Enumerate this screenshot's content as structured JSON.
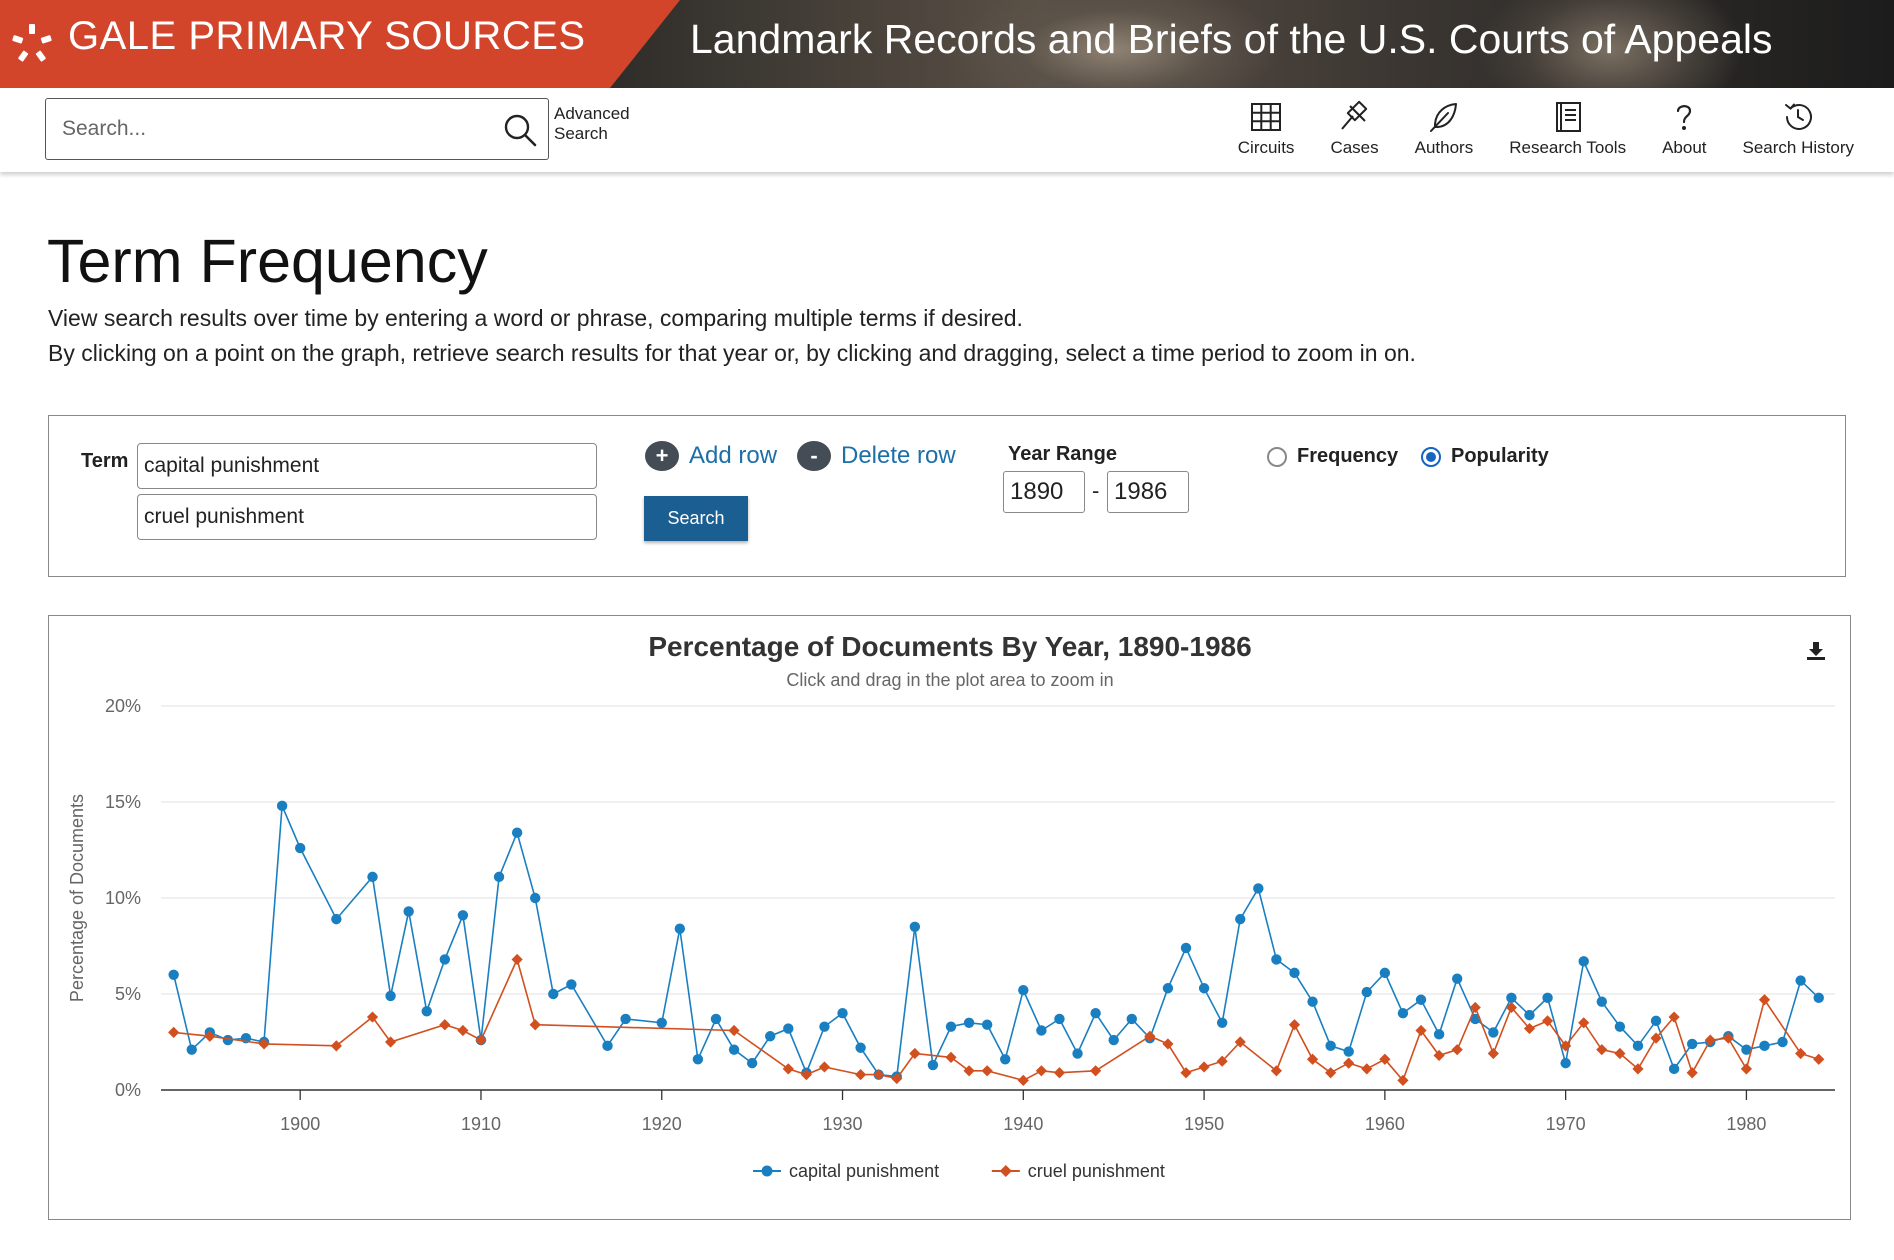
{
  "header": {
    "brand": "GALE PRIMARY SOURCES",
    "collection": "Landmark Records and Briefs of the U.S. Courts of Appeals"
  },
  "toolbar": {
    "search_placeholder": "Search...",
    "advanced_search": "Advanced Search",
    "nav": [
      {
        "label": "Circuits",
        "icon": "grid-icon"
      },
      {
        "label": "Cases",
        "icon": "gavel-icon"
      },
      {
        "label": "Authors",
        "icon": "feather-icon"
      },
      {
        "label": "Research Tools",
        "icon": "book-icon"
      },
      {
        "label": "About",
        "icon": "question-icon"
      },
      {
        "label": "Search History",
        "icon": "history-icon"
      }
    ]
  },
  "page": {
    "title": "Term Frequency",
    "desc1": "View search results over time by entering a word or phrase, comparing multiple terms if desired.",
    "desc2": "By clicking on a point on the graph, retrieve search results for that year or, by clicking and dragging, select a time period to zoom in on."
  },
  "form": {
    "term_label": "Term",
    "terms": [
      "capital punishment",
      "cruel punishment"
    ],
    "add_row": "Add row",
    "delete_row": "Delete row",
    "search_button": "Search",
    "year_range_label": "Year Range",
    "year_from": "1890",
    "year_to": "1986",
    "year_sep": "-",
    "mode_options": [
      "Frequency",
      "Popularity"
    ],
    "mode_selected": "Popularity"
  },
  "colors": {
    "brand": "#d2452b",
    "series1": "#1a7fc1",
    "series2": "#d2501f",
    "button": "#1b5e92",
    "link": "#1d6fa8"
  },
  "chart_data": {
    "type": "line",
    "title": "Percentage of Documents By Year, 1890-1986",
    "subtitle": "Click and drag in the plot area to zoom in",
    "ylabel": "Percentage of Documents",
    "xlabel": "",
    "ylim": [
      0,
      20
    ],
    "xlim": [
      1890,
      1986
    ],
    "yticks": [
      0,
      5,
      10,
      15,
      20
    ],
    "ytick_labels": [
      "0%",
      "5%",
      "10%",
      "15%",
      "20%"
    ],
    "xticks": [
      1900,
      1910,
      1920,
      1930,
      1940,
      1950,
      1960,
      1970,
      1980
    ],
    "grid": true,
    "legend": "bottom",
    "series": [
      {
        "name": "capital punishment",
        "color": "#1a7fc1",
        "marker": "circle",
        "points": [
          [
            1893,
            6.0
          ],
          [
            1894,
            2.1
          ],
          [
            1895,
            3.0
          ],
          [
            1896,
            2.6
          ],
          [
            1897,
            2.7
          ],
          [
            1898,
            2.5
          ],
          [
            1899,
            14.8
          ],
          [
            1900,
            12.6
          ],
          [
            1902,
            8.9
          ],
          [
            1904,
            11.1
          ],
          [
            1905,
            4.9
          ],
          [
            1906,
            9.3
          ],
          [
            1907,
            4.1
          ],
          [
            1908,
            6.8
          ],
          [
            1909,
            9.1
          ],
          [
            1910,
            2.6
          ],
          [
            1911,
            11.1
          ],
          [
            1912,
            13.4
          ],
          [
            1913,
            10.0
          ],
          [
            1914,
            5.0
          ],
          [
            1915,
            5.5
          ],
          [
            1917,
            2.3
          ],
          [
            1918,
            3.7
          ],
          [
            1920,
            3.5
          ],
          [
            1921,
            8.4
          ],
          [
            1922,
            1.6
          ],
          [
            1923,
            3.7
          ],
          [
            1924,
            2.1
          ],
          [
            1925,
            1.4
          ],
          [
            1926,
            2.8
          ],
          [
            1927,
            3.2
          ],
          [
            1928,
            0.9
          ],
          [
            1929,
            3.3
          ],
          [
            1930,
            4.0
          ],
          [
            1931,
            2.2
          ],
          [
            1932,
            0.8
          ],
          [
            1933,
            0.7
          ],
          [
            1934,
            8.5
          ],
          [
            1935,
            1.3
          ],
          [
            1936,
            3.3
          ],
          [
            1937,
            3.5
          ],
          [
            1938,
            3.4
          ],
          [
            1939,
            1.6
          ],
          [
            1940,
            5.2
          ],
          [
            1941,
            3.1
          ],
          [
            1942,
            3.7
          ],
          [
            1943,
            1.9
          ],
          [
            1944,
            4.0
          ],
          [
            1945,
            2.6
          ],
          [
            1946,
            3.7
          ],
          [
            1947,
            2.7
          ],
          [
            1948,
            5.3
          ],
          [
            1949,
            7.4
          ],
          [
            1950,
            5.3
          ],
          [
            1951,
            3.5
          ],
          [
            1952,
            8.9
          ],
          [
            1953,
            10.5
          ],
          [
            1954,
            6.8
          ],
          [
            1955,
            6.1
          ],
          [
            1956,
            4.6
          ],
          [
            1957,
            2.3
          ],
          [
            1958,
            2.0
          ],
          [
            1959,
            5.1
          ],
          [
            1960,
            6.1
          ],
          [
            1961,
            4.0
          ],
          [
            1962,
            4.7
          ],
          [
            1963,
            2.9
          ],
          [
            1964,
            5.8
          ],
          [
            1965,
            3.7
          ],
          [
            1966,
            3.0
          ],
          [
            1967,
            4.8
          ],
          [
            1968,
            3.9
          ],
          [
            1969,
            4.8
          ],
          [
            1970,
            1.4
          ],
          [
            1971,
            6.7
          ],
          [
            1972,
            4.6
          ],
          [
            1973,
            3.3
          ],
          [
            1974,
            2.3
          ],
          [
            1975,
            3.6
          ],
          [
            1976,
            1.1
          ],
          [
            1977,
            2.4
          ],
          [
            1978,
            2.5
          ],
          [
            1979,
            2.8
          ],
          [
            1980,
            2.1
          ],
          [
            1981,
            2.3
          ],
          [
            1982,
            2.5
          ],
          [
            1983,
            5.7
          ],
          [
            1984,
            4.8
          ]
        ]
      },
      {
        "name": "cruel punishment",
        "color": "#d2501f",
        "marker": "diamond",
        "points": [
          [
            1893,
            3.0
          ],
          [
            1895,
            2.8
          ],
          [
            1898,
            2.4
          ],
          [
            1902,
            2.3
          ],
          [
            1904,
            3.8
          ],
          [
            1905,
            2.5
          ],
          [
            1908,
            3.4
          ],
          [
            1909,
            3.1
          ],
          [
            1910,
            2.6
          ],
          [
            1912,
            6.8
          ],
          [
            1913,
            3.4
          ],
          [
            1924,
            3.1
          ],
          [
            1927,
            1.1
          ],
          [
            1928,
            0.8
          ],
          [
            1929,
            1.2
          ],
          [
            1931,
            0.8
          ],
          [
            1932,
            0.8
          ],
          [
            1933,
            0.6
          ],
          [
            1934,
            1.9
          ],
          [
            1936,
            1.7
          ],
          [
            1937,
            1.0
          ],
          [
            1938,
            1.0
          ],
          [
            1940,
            0.5
          ],
          [
            1941,
            1.0
          ],
          [
            1942,
            0.9
          ],
          [
            1944,
            1.0
          ],
          [
            1947,
            2.8
          ],
          [
            1948,
            2.4
          ],
          [
            1949,
            0.9
          ],
          [
            1950,
            1.2
          ],
          [
            1951,
            1.5
          ],
          [
            1952,
            2.5
          ],
          [
            1954,
            1.0
          ],
          [
            1955,
            3.4
          ],
          [
            1956,
            1.6
          ],
          [
            1957,
            0.9
          ],
          [
            1958,
            1.4
          ],
          [
            1959,
            1.1
          ],
          [
            1960,
            1.6
          ],
          [
            1961,
            0.5
          ],
          [
            1962,
            3.1
          ],
          [
            1963,
            1.8
          ],
          [
            1964,
            2.1
          ],
          [
            1965,
            4.3
          ],
          [
            1966,
            1.9
          ],
          [
            1967,
            4.3
          ],
          [
            1968,
            3.2
          ],
          [
            1969,
            3.6
          ],
          [
            1970,
            2.3
          ],
          [
            1971,
            3.5
          ],
          [
            1972,
            2.1
          ],
          [
            1973,
            1.9
          ],
          [
            1974,
            1.1
          ],
          [
            1975,
            2.7
          ],
          [
            1976,
            3.8
          ],
          [
            1977,
            0.9
          ],
          [
            1978,
            2.6
          ],
          [
            1979,
            2.7
          ],
          [
            1980,
            1.1
          ],
          [
            1981,
            4.7
          ],
          [
            1983,
            1.9
          ],
          [
            1984,
            1.6
          ]
        ]
      }
    ]
  }
}
